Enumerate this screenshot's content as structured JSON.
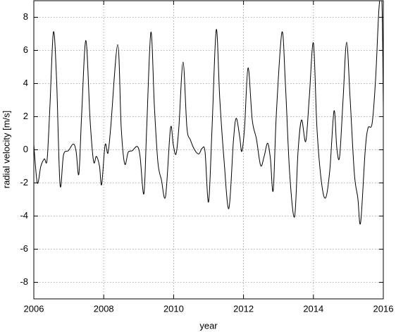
{
  "chart_data": {
    "type": "line",
    "x_label": "year",
    "y_label": "radial velocity [m/s]",
    "xlim": [
      2006,
      2016
    ],
    "xticks": [
      2006,
      2008,
      2010,
      2012,
      2014,
      2016
    ],
    "ylim": [
      -9,
      9
    ],
    "yticks": [
      -8,
      -6,
      -4,
      -2,
      0,
      2,
      4,
      6,
      8
    ],
    "grid": true,
    "series": [
      {
        "color": "#000000",
        "x": [
          2006.0,
          2006.1,
          2006.2,
          2006.3,
          2006.38,
          2006.46,
          2006.56,
          2006.65,
          2006.75,
          2006.85,
          2006.99,
          2007.13,
          2007.21,
          2007.29,
          2007.37,
          2007.49,
          2007.61,
          2007.71,
          2007.79,
          2007.88,
          2007.94,
          2008.04,
          2008.12,
          2008.2,
          2008.4,
          2008.5,
          2008.6,
          2008.7,
          2008.82,
          2008.96,
          2009.04,
          2009.15,
          2009.23,
          2009.35,
          2009.45,
          2009.55,
          2009.65,
          2009.77,
          2009.91,
          2009.99,
          2010.07,
          2010.15,
          2010.27,
          2010.38,
          2010.48,
          2010.6,
          2010.72,
          2010.82,
          2010.9,
          2011.0,
          2011.1,
          2011.22,
          2011.32,
          2011.44,
          2011.58,
          2011.71,
          2011.79,
          2011.89,
          2011.95,
          2012.03,
          2012.13,
          2012.25,
          2012.37,
          2012.49,
          2012.59,
          2012.69,
          2012.77,
          2012.85,
          2012.94,
          2013.1,
          2013.2,
          2013.32,
          2013.46,
          2013.56,
          2013.66,
          2013.78,
          2013.88,
          2014.0,
          2014.1,
          2014.23,
          2014.35,
          2014.47,
          2014.59,
          2014.67,
          2014.75,
          2014.85,
          2014.95,
          2015.05,
          2015.17,
          2015.27,
          2015.35,
          2015.48,
          2015.56,
          2015.68,
          2015.78,
          2015.88,
          2015.96,
          2016.0
        ],
        "values": [
          0.3,
          -2.0,
          -1.0,
          -0.55,
          -0.6,
          2.6,
          7.1,
          4.3,
          -2.1,
          -0.3,
          -0.05,
          0.35,
          -0.1,
          -1.45,
          2.2,
          6.6,
          1.8,
          -0.7,
          -0.4,
          -1.0,
          -2.1,
          0.3,
          -0.2,
          1.35,
          6.35,
          1.35,
          -0.85,
          -0.15,
          -0.05,
          0.2,
          -0.4,
          -2.65,
          1.35,
          7.1,
          2.6,
          -0.75,
          -1.8,
          -2.8,
          1.3,
          0.3,
          -0.25,
          1.35,
          5.3,
          1.35,
          0.6,
          0,
          -0.25,
          0.1,
          -0.15,
          -3.15,
          1.35,
          7.25,
          3.1,
          -0.55,
          -3.55,
          0.5,
          1.9,
          0.8,
          -0.1,
          1.35,
          4.95,
          1.8,
          0.65,
          -0.95,
          -0.4,
          0.4,
          -0.55,
          -2.45,
          2.2,
          7.1,
          3.9,
          -1.4,
          -4.05,
          -0.1,
          1.8,
          0.5,
          3.1,
          6.45,
          1.35,
          -1.95,
          -2.9,
          -1.2,
          2.35,
          0.1,
          -0.4,
          3.1,
          6.5,
          3.1,
          -1.4,
          -2.9,
          -4.4,
          -0.1,
          1.3,
          1.6,
          4.3,
          8.65,
          8.9,
          2.6
        ]
      }
    ]
  }
}
